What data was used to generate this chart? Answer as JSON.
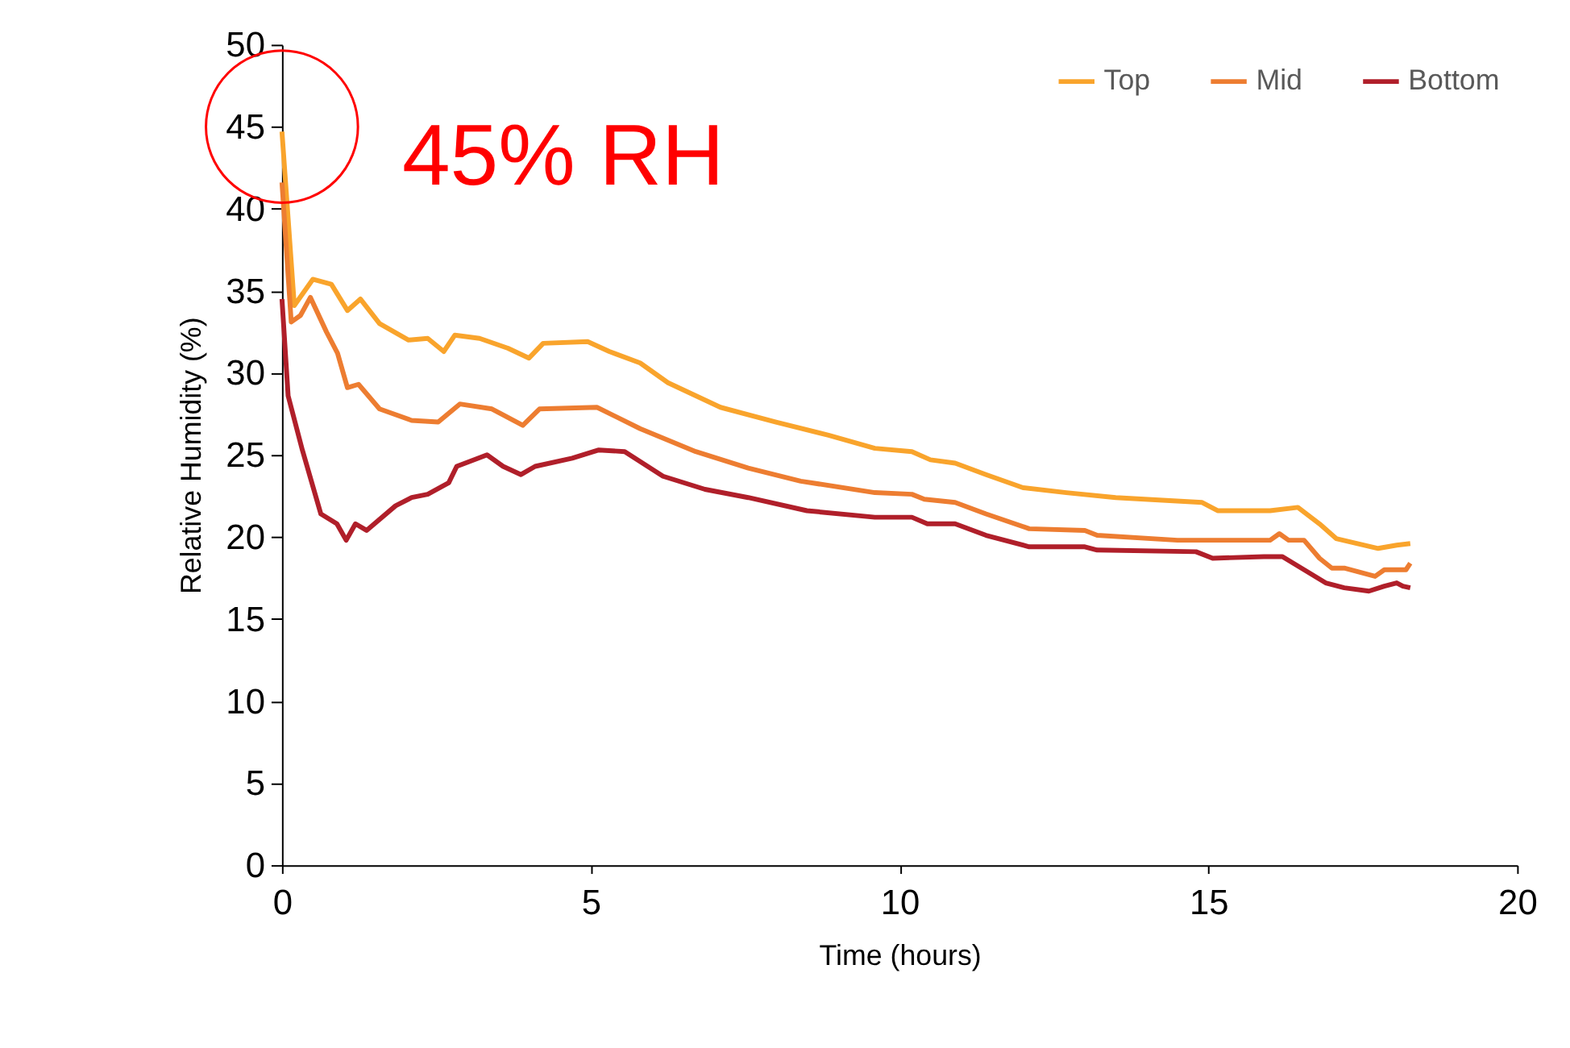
{
  "chart_data": {
    "type": "line",
    "xlabel": "Time (hours)",
    "ylabel": "Relative Humidity (%)",
    "xlim": [
      0,
      20
    ],
    "xticks": [
      0,
      5,
      10,
      15,
      20
    ],
    "ylim": [
      0,
      50
    ],
    "yticks": [
      0,
      5,
      10,
      15,
      20,
      25,
      30,
      35,
      40,
      45,
      50
    ],
    "grid": false,
    "legend": "top right",
    "line_style": "solid",
    "marker": "none",
    "annotations": [
      {
        "text": "45% RH",
        "x": 0,
        "y": 45
      }
    ],
    "series": [
      {
        "name": "Top",
        "color": "#f9a42c",
        "x": [
          0,
          0.2,
          0.5,
          0.8,
          1.06,
          1.27,
          1.58,
          2.05,
          2.36,
          2.62,
          2.8,
          3.2,
          3.66,
          4.0,
          4.23,
          4.95,
          5.3,
          5.8,
          6.25,
          7.1,
          8.0,
          8.85,
          9.6,
          10.2,
          10.5,
          10.9,
          11.4,
          12.0,
          12.7,
          13.5,
          14.9,
          15.15,
          16.0,
          16.45,
          16.8,
          17.07,
          17.75,
          18.05,
          18.27
        ],
        "values": [
          44.7,
          34.1,
          35.7,
          35.4,
          33.8,
          34.5,
          33.0,
          32.0,
          32.1,
          31.3,
          32.3,
          32.1,
          31.5,
          30.9,
          31.8,
          31.9,
          31.3,
          30.6,
          29.4,
          27.9,
          27.0,
          26.2,
          25.4,
          25.2,
          24.7,
          24.5,
          23.8,
          23.0,
          22.7,
          22.4,
          22.1,
          21.6,
          21.6,
          21.8,
          20.8,
          19.9,
          19.3,
          19.5,
          19.6
        ]
      },
      {
        "name": "Mid",
        "color": "#ed7d31",
        "x": [
          0,
          0.15,
          0.3,
          0.46,
          0.72,
          0.9,
          1.06,
          1.24,
          1.58,
          2.1,
          2.53,
          2.88,
          3.4,
          3.9,
          4.17,
          5.1,
          5.8,
          6.7,
          7.55,
          8.4,
          9.6,
          10.2,
          10.4,
          10.9,
          11.4,
          12.1,
          13.0,
          13.2,
          14.5,
          16.0,
          16.15,
          16.3,
          16.55,
          16.8,
          17.0,
          17.2,
          17.7,
          17.85,
          18.2,
          18.27
        ],
        "values": [
          41.6,
          33.1,
          33.5,
          34.6,
          32.5,
          31.2,
          29.1,
          29.3,
          27.8,
          27.1,
          27.0,
          28.1,
          27.8,
          26.8,
          27.8,
          27.9,
          26.6,
          25.2,
          24.2,
          23.4,
          22.7,
          22.6,
          22.3,
          22.1,
          21.4,
          20.5,
          20.4,
          20.1,
          19.8,
          19.8,
          20.2,
          19.8,
          19.8,
          18.7,
          18.1,
          18.1,
          17.6,
          18.0,
          18.0,
          18.4
        ]
      },
      {
        "name": "Bottom",
        "color": "#b01f2a",
        "x": [
          0,
          0.1,
          0.33,
          0.63,
          0.89,
          1.04,
          1.19,
          1.37,
          1.84,
          2.1,
          2.36,
          2.7,
          2.83,
          3.32,
          3.58,
          3.87,
          4.1,
          4.7,
          5.13,
          5.55,
          6.17,
          6.85,
          7.55,
          8.5,
          9.6,
          10.2,
          10.45,
          10.9,
          11.4,
          12.1,
          13.0,
          13.2,
          14.8,
          15.07,
          15.9,
          16.2,
          16.55,
          16.9,
          17.2,
          17.6,
          17.85,
          18.05,
          18.15,
          18.27
        ],
        "values": [
          34.5,
          28.6,
          25.3,
          21.4,
          20.8,
          19.8,
          20.8,
          20.4,
          21.9,
          22.4,
          22.6,
          23.3,
          24.3,
          25.0,
          24.3,
          23.8,
          24.3,
          24.8,
          25.3,
          25.2,
          23.7,
          22.9,
          22.4,
          21.6,
          21.2,
          21.2,
          20.8,
          20.8,
          20.1,
          19.4,
          19.4,
          19.2,
          19.1,
          18.7,
          18.8,
          18.8,
          18.0,
          17.2,
          16.9,
          16.7,
          17.0,
          17.2,
          17.0,
          16.9
        ]
      }
    ]
  }
}
